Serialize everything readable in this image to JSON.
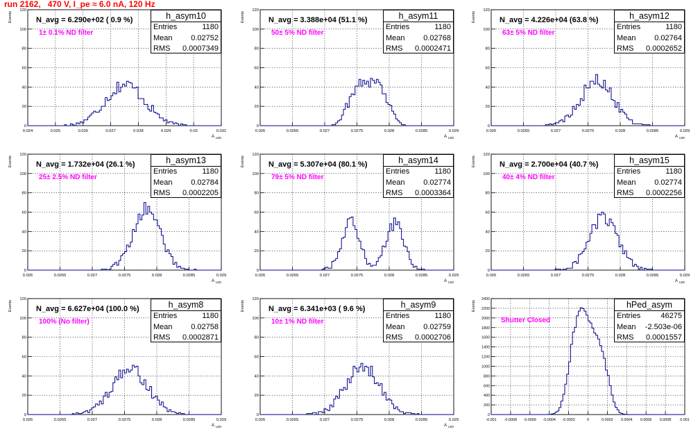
{
  "page": {
    "title": "run 2162,   470 V, I_pe ≈ 6.0 nA, 120 Hz"
  },
  "colors": {
    "histogram": "#00008b",
    "title": "#ff0000",
    "annotation": "#ff00ff",
    "grid": "#000000"
  },
  "chart_data": [
    {
      "type": "histogram",
      "name": "h_asym10",
      "stats": {
        "Entries": "1180",
        "Mean": "0.02752",
        "RMS": "0.0007349"
      },
      "navg": "N_avg = 6.290e+02 ( 0.9 %)",
      "filter": "1± 0.1% ND filter",
      "xlabel": "A",
      "xlabel_sub": "LED",
      "ylabel": "Events",
      "xlim": [
        0.024,
        0.031
      ],
      "ylim": [
        0,
        120
      ],
      "xticks": [
        "0.024",
        "0.025",
        "0.026",
        "0.027",
        "0.028",
        "0.029",
        "0.03",
        "0.031"
      ],
      "yticks": [
        "0",
        "20",
        "40",
        "60",
        "80",
        "100",
        "120"
      ],
      "mean": 0.02752,
      "rms": 0.0007349,
      "peak": 52,
      "shape": "single",
      "entries": 1180
    },
    {
      "type": "histogram",
      "name": "h_asym11",
      "stats": {
        "Entries": "1180",
        "Mean": "0.02768",
        "RMS": "0.0002471"
      },
      "navg": "N_avg = 3.388e+04 (51.1 %)",
      "filter": "50± 5% ND filter",
      "xlabel": "A",
      "xlabel_sub": "LED",
      "ylabel": "Events",
      "xlim": [
        0.026,
        0.029
      ],
      "ylim": [
        0,
        120
      ],
      "xticks": [
        "0.026",
        "0.0265",
        "0.027",
        "0.0275",
        "0.028",
        "0.0285",
        "0.029"
      ],
      "yticks": [
        "0",
        "20",
        "40",
        "60",
        "80",
        "100",
        "120"
      ],
      "mean": 0.02768,
      "rms": 0.0002471,
      "peak": 51,
      "shape": "flat",
      "entries": 1180
    },
    {
      "type": "histogram",
      "name": "h_asym12",
      "stats": {
        "Entries": "1180",
        "Mean": "0.02764",
        "RMS": "0.0002652"
      },
      "navg": "N_avg = 4.226e+04 (63.8 %)",
      "filter": "63± 5% ND filter",
      "xlabel": "A",
      "xlabel_sub": "LED",
      "ylabel": "Events",
      "xlim": [
        0.026,
        0.029
      ],
      "ylim": [
        0,
        120
      ],
      "xticks": [
        "0.026",
        "0.0265",
        "0.027",
        "0.0275",
        "0.028",
        "0.0285",
        "0.029"
      ],
      "yticks": [
        "0",
        "20",
        "40",
        "60",
        "80",
        "100",
        "120"
      ],
      "mean": 0.02764,
      "rms": 0.0002652,
      "peak": 56,
      "shape": "single",
      "entries": 1180
    },
    {
      "type": "histogram",
      "name": "h_asym13",
      "stats": {
        "Entries": "1180",
        "Mean": "0.02784",
        "RMS": "0.0002205"
      },
      "navg": "N_avg = 1.732e+04 (26.1 %)",
      "filter": "25± 2.5% ND filter",
      "xlabel": "A",
      "xlabel_sub": "LED",
      "ylabel": "Events",
      "xlim": [
        0.026,
        0.029
      ],
      "ylim": [
        0,
        120
      ],
      "xticks": [
        "0.026",
        "0.0265",
        "0.027",
        "0.0275",
        "0.028",
        "0.0285",
        "0.029"
      ],
      "yticks": [
        "0",
        "20",
        "40",
        "60",
        "80",
        "100",
        "120"
      ],
      "mean": 0.02784,
      "rms": 0.0002205,
      "peak": 76,
      "shape": "single",
      "entries": 1180
    },
    {
      "type": "histogram",
      "name": "h_asym14",
      "stats": {
        "Entries": "1180",
        "Mean": "0.02774",
        "RMS": "0.0003364"
      },
      "navg": "N_avg = 5.307e+04 (80.1 %)",
      "filter": "79± 5% ND filter",
      "xlabel": "A",
      "xlabel_sub": "LED",
      "ylabel": "Events",
      "xlim": [
        0.026,
        0.029
      ],
      "ylim": [
        0,
        120
      ],
      "xticks": [
        "0.026",
        "0.0265",
        "0.027",
        "0.0275",
        "0.028",
        "0.0285",
        "0.029"
      ],
      "yticks": [
        "0",
        "20",
        "40",
        "60",
        "80",
        "100",
        "120"
      ],
      "mean": 0.02774,
      "rms": 0.0003364,
      "peak": 57,
      "shape": "double",
      "peaks": [
        0.0274,
        0.02808
      ],
      "entries": 1180
    },
    {
      "type": "histogram",
      "name": "h_asym15",
      "stats": {
        "Entries": "1180",
        "Mean": "0.02774",
        "RMS": "0.0002256"
      },
      "navg": "N_avg = 2.700e+04 (40.7 %)",
      "filter": "40± 4% ND filter",
      "xlabel": "A",
      "xlabel_sub": "LED",
      "ylabel": "Events",
      "xlim": [
        0.026,
        0.029
      ],
      "ylim": [
        0,
        120
      ],
      "xticks": [
        "0.026",
        "0.0265",
        "0.027",
        "0.0275",
        "0.028",
        "0.0285",
        "0.029"
      ],
      "yticks": [
        "0",
        "20",
        "40",
        "60",
        "80",
        "100",
        "120"
      ],
      "mean": 0.02774,
      "rms": 0.0002256,
      "peak": 66,
      "shape": "single",
      "entries": 1180
    },
    {
      "type": "histogram",
      "name": "h_asym8",
      "stats": {
        "Entries": "1180",
        "Mean": "0.02758",
        "RMS": "0.0002871"
      },
      "navg": "N_avg = 6.627e+04 (100.0 %)",
      "filter": "100% (No filter)",
      "xlabel": "A",
      "xlabel_sub": "LED",
      "ylabel": "Events",
      "xlim": [
        0.026,
        0.029
      ],
      "ylim": [
        0,
        120
      ],
      "xticks": [
        "0.026",
        "0.0265",
        "0.027",
        "0.0275",
        "0.028",
        "0.0285",
        "0.029"
      ],
      "yticks": [
        "0",
        "20",
        "40",
        "60",
        "80",
        "100",
        "120"
      ],
      "mean": 0.02758,
      "rms": 0.0002871,
      "peak": 57,
      "shape": "single",
      "entries": 1180
    },
    {
      "type": "histogram",
      "name": "h_asym9",
      "stats": {
        "Entries": "1180",
        "Mean": "0.02759",
        "RMS": "0.0002706"
      },
      "navg": "N_avg = 6.341e+03 ( 9.6 %)",
      "filter": "10± 1% ND filter",
      "xlabel": "A",
      "xlabel_sub": "LED",
      "ylabel": "Events",
      "xlim": [
        0.026,
        0.029
      ],
      "ylim": [
        0,
        120
      ],
      "xticks": [
        "0.026",
        "0.0265",
        "0.027",
        "0.0275",
        "0.028",
        "0.0285",
        "0.029"
      ],
      "yticks": [
        "0",
        "20",
        "40",
        "60",
        "80",
        "100",
        "120"
      ],
      "mean": 0.02759,
      "rms": 0.0002706,
      "peak": 60,
      "shape": "single",
      "entries": 1180
    },
    {
      "type": "histogram",
      "name": "hPed_asym",
      "stats": {
        "Entries": "46275",
        "Mean": "-2.503e-06",
        "RMS": "0.0001557"
      },
      "navg": "",
      "filter": "Shutter Closed",
      "xlabel": "",
      "xlabel_sub": "",
      "ylabel": "Events",
      "xlim": [
        -0.001,
        0.001
      ],
      "ylim": [
        0,
        2400
      ],
      "xticks": [
        "-0.001",
        "-0.0008",
        "-0.0006",
        "-0.0004",
        "-0.0002",
        "0",
        "0.0002",
        "0.0004",
        "0.0006",
        "0.0008",
        "0.001"
      ],
      "yticks": [
        "0",
        "200",
        "400",
        "600",
        "800",
        "1000",
        "1200",
        "1400",
        "1600",
        "1800",
        "2000",
        "2200",
        "2400"
      ],
      "mean": -2.5e-06,
      "rms": 0.0001557,
      "peak": 2160,
      "shape": "ped",
      "entries": 46275
    }
  ]
}
